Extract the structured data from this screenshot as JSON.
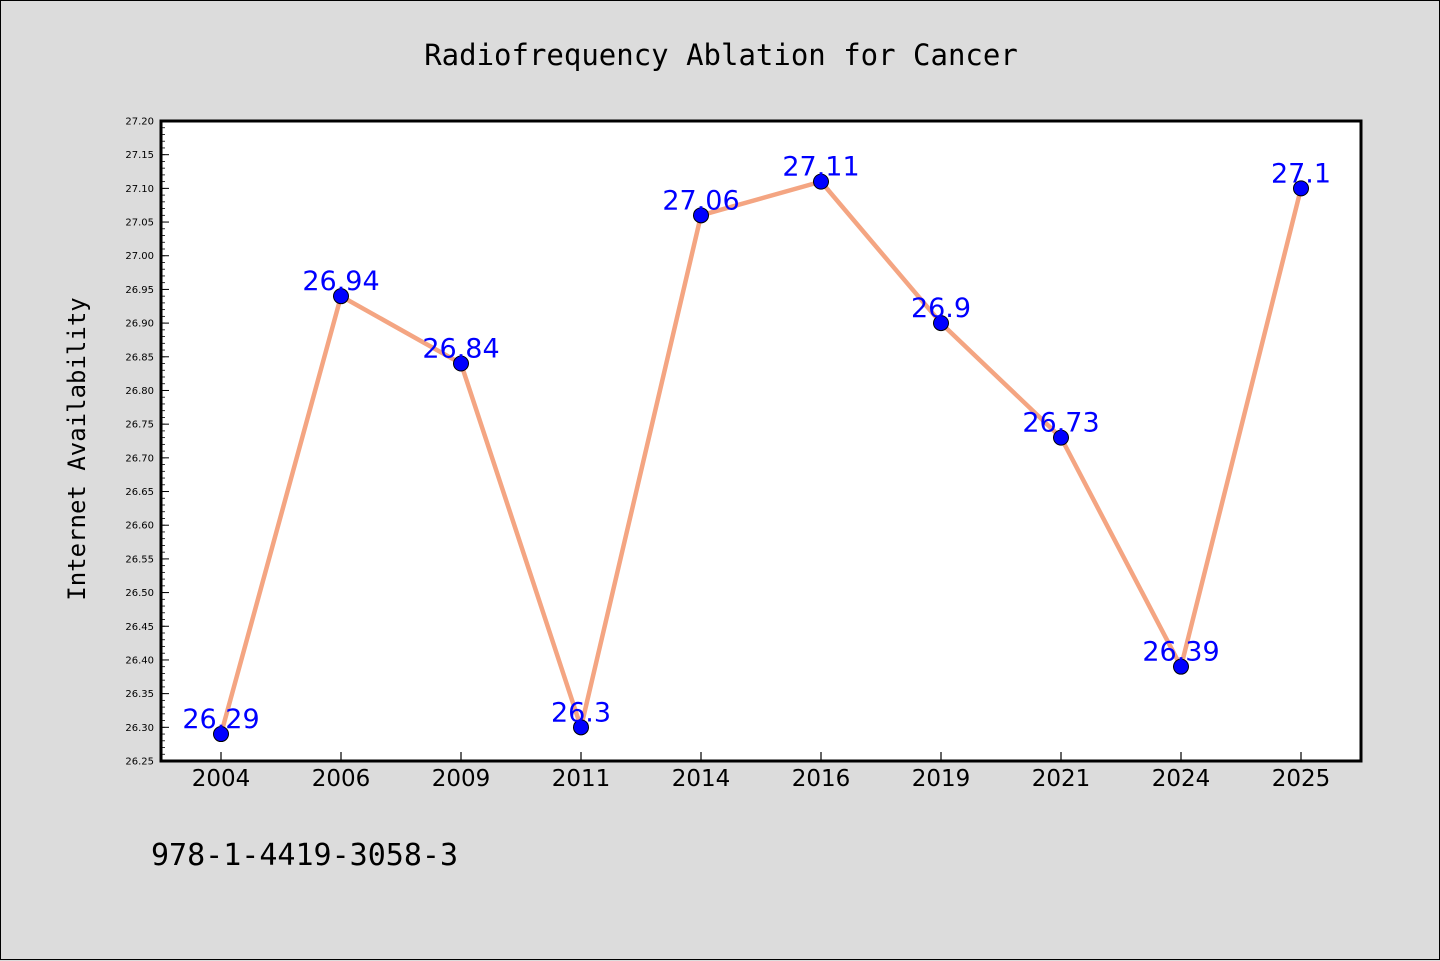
{
  "chart_data": {
    "type": "line",
    "title": "Radiofrequency Ablation for Cancer",
    "xlabel": "",
    "ylabel": "Internet Availability",
    "categories": [
      "2004",
      "2006",
      "2009",
      "2011",
      "2014",
      "2016",
      "2019",
      "2021",
      "2024",
      "2025"
    ],
    "series": [
      {
        "values": [
          26.29,
          26.94,
          26.84,
          26.3,
          27.06,
          27.11,
          26.9,
          26.73,
          26.39,
          27.1
        ],
        "data_labels": [
          "26.29",
          "26.94",
          "26.84",
          "26.3",
          "27.06",
          "27.11",
          "26.9",
          "26.73",
          "26.39",
          "27.1"
        ]
      }
    ],
    "ylim": [
      26.25,
      27.2
    ],
    "yticks": [
      "26.25",
      "26.30",
      "26.35",
      "26.40",
      "26.45",
      "26.50",
      "26.55",
      "26.60",
      "26.65",
      "26.70",
      "26.75",
      "26.80",
      "26.85",
      "26.90",
      "26.95",
      "27.00",
      "27.05",
      "27.10",
      "27.15",
      "27.20"
    ],
    "grid": false,
    "legend": "none",
    "colors": {
      "line": "#f4a582",
      "marker": "#0000ff",
      "data_label": "#0000ff",
      "background": "#dcdcdc",
      "plot_background": "#ffffff"
    }
  },
  "footer": {
    "isbn": "978-1-4419-3058-3"
  }
}
